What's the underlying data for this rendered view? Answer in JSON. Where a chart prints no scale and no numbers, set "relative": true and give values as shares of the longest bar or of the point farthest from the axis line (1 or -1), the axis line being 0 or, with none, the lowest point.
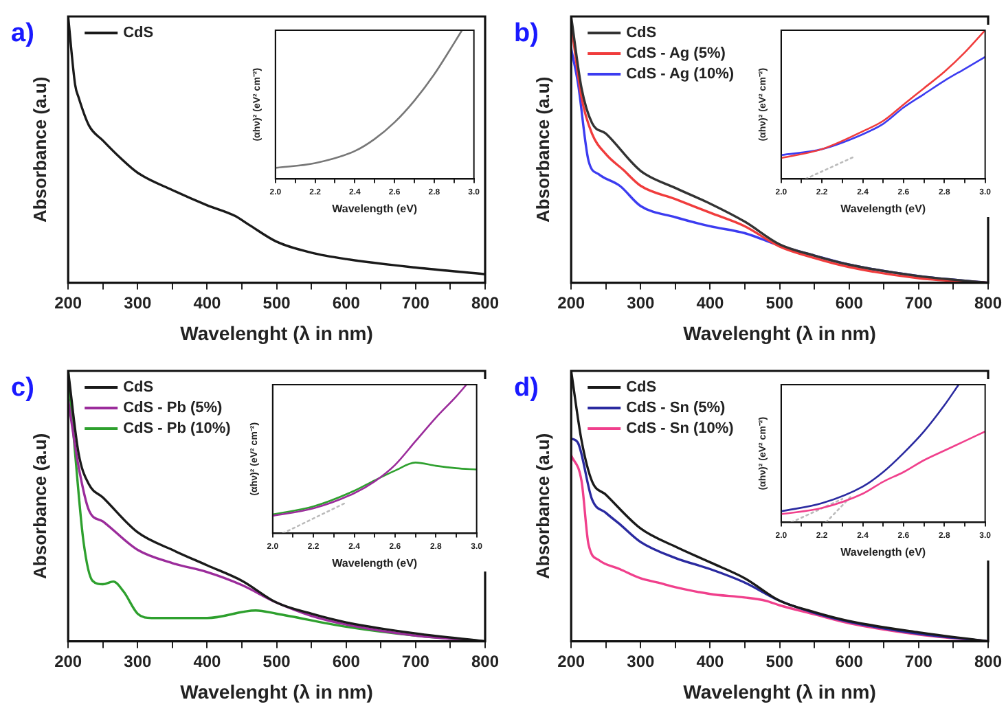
{
  "chart_data": [
    {
      "type": "line",
      "relative": true,
      "xlabel": "Wavelenght (λ in nm)",
      "ylabel": "Absorbance (a.u)",
      "annotations": [
        "a)"
      ],
      "legend": "top left",
      "marker": "none",
      "line_style": "solid",
      "xlim": [
        200,
        800
      ],
      "xticks": [
        200,
        {
          "value": 250,
          "label": null
        },
        300,
        {
          "value": 350,
          "label": null
        },
        400,
        {
          "value": 450,
          "label": null
        },
        500,
        {
          "value": 550,
          "label": null
        },
        600,
        {
          "value": 650,
          "label": null
        },
        700,
        {
          "value": 750,
          "label": null
        },
        800
      ],
      "series": [
        {
          "name": "CdS",
          "color": "#1a1a1a",
          "x": [
            200,
            210,
            215,
            230,
            250,
            275,
            300,
            350,
            400,
            440,
            460,
            500,
            550,
            600,
            700,
            800
          ],
          "values": [
            1.0,
            0.744,
            0.696,
            0.59,
            0.534,
            0.469,
            0.413,
            0.348,
            0.291,
            0.251,
            0.218,
            0.154,
            0.113,
            0.089,
            0.057,
            0.032
          ]
        }
      ]
    },
    {
      "type": "line",
      "relative": true,
      "xlabel": "Wavelength (eV)",
      "ylabel": "(αhν)² (eV² cm⁻²)",
      "marker": "none",
      "line_style": "solid",
      "xlim": [
        2.0,
        3.0
      ],
      "xticks": [
        {
          "value": 2.0,
          "label": "2.0"
        },
        {
          "value": 2.1,
          "label": null
        },
        {
          "value": 2.2,
          "label": "2.2"
        },
        {
          "value": 2.3,
          "label": null
        },
        {
          "value": 2.4,
          "label": "2.4"
        },
        {
          "value": 2.5,
          "label": null
        },
        {
          "value": 2.6,
          "label": "2.6"
        },
        {
          "value": 2.7,
          "label": null
        },
        {
          "value": 2.8,
          "label": "2.8"
        },
        {
          "value": 2.9,
          "label": null
        },
        {
          "value": 3.0,
          "label": "3.0"
        }
      ],
      "series": [
        {
          "color": "#777777",
          "x": [
            2.0,
            2.2,
            2.4,
            2.5,
            2.6,
            2.7,
            2.8,
            2.9,
            2.94
          ],
          "values": [
            0.074,
            0.106,
            0.187,
            0.268,
            0.38,
            0.526,
            0.703,
            0.913,
            1.0
          ]
        }
      ]
    },
    {
      "type": "line",
      "relative": true,
      "xlabel": "Wavelenght (λ in nm)",
      "ylabel": "Absorbance (a.u)",
      "annotations": [
        "b)"
      ],
      "legend": "top left",
      "marker": "none",
      "line_style": "solid",
      "xlim": [
        200,
        800
      ],
      "xticks": [
        200,
        {
          "value": 250,
          "label": null
        },
        300,
        {
          "value": 350,
          "label": null
        },
        400,
        {
          "value": 450,
          "label": null
        },
        500,
        {
          "value": 550,
          "label": null
        },
        600,
        {
          "value": 650,
          "label": null
        },
        700,
        {
          "value": 750,
          "label": null
        },
        800
      ],
      "series": [
        {
          "name": "CdS",
          "color": "#333333",
          "x": [
            200,
            215,
            230,
            250,
            300,
            350,
            400,
            450,
            500,
            550,
            600,
            700,
            800
          ],
          "values": [
            1.0,
            0.73,
            0.6,
            0.56,
            0.42,
            0.356,
            0.297,
            0.229,
            0.144,
            0.102,
            0.068,
            0.025,
            0
          ]
        },
        {
          "name": "CdS - Ag (5%)",
          "color": "#f03c3c",
          "x": [
            200,
            215,
            230,
            250,
            275,
            300,
            350,
            400,
            450,
            500,
            550,
            600,
            700,
            800
          ],
          "values": [
            0.975,
            0.695,
            0.56,
            0.483,
            0.424,
            0.364,
            0.314,
            0.263,
            0.212,
            0.136,
            0.093,
            0.059,
            0.017,
            0
          ]
        },
        {
          "name": "CdS - Ag (10%)",
          "color": "#3c3cf0",
          "x": [
            200,
            210,
            225,
            240,
            270,
            300,
            350,
            400,
            450,
            500,
            550,
            600,
            700,
            800
          ],
          "values": [
            0.88,
            0.746,
            0.458,
            0.407,
            0.364,
            0.288,
            0.246,
            0.212,
            0.186,
            0.139,
            0.102,
            0.068,
            0.025,
            0
          ]
        }
      ]
    },
    {
      "type": "line",
      "relative": true,
      "xlabel": "Wavelength (eV)",
      "ylabel": "(αhν)² (eV² cm⁻²)",
      "marker": "none",
      "line_style": "solid",
      "xlim": [
        2.0,
        3.0
      ],
      "xticks": [
        {
          "value": 2.0,
          "label": "2.0"
        },
        {
          "value": 2.1,
          "label": null
        },
        {
          "value": 2.2,
          "label": "2.2"
        },
        {
          "value": 2.3,
          "label": null
        },
        {
          "value": 2.4,
          "label": "2.4"
        },
        {
          "value": 2.5,
          "label": null
        },
        {
          "value": 2.6,
          "label": "2.6"
        },
        {
          "value": 2.7,
          "label": null
        },
        {
          "value": 2.8,
          "label": "2.8"
        },
        {
          "value": 2.9,
          "label": null
        },
        {
          "value": 3.0,
          "label": "3.0"
        }
      ],
      "series": [
        {
          "color": "#f03c3c",
          "x": [
            2.0,
            2.2,
            2.4,
            2.5,
            2.6,
            2.7,
            2.8,
            2.9,
            3.0
          ],
          "values": [
            0.14,
            0.2,
            0.32,
            0.39,
            0.5,
            0.61,
            0.72,
            0.85,
            1.0
          ]
        },
        {
          "color": "#3c3cf0",
          "x": [
            2.0,
            2.2,
            2.4,
            2.5,
            2.6,
            2.7,
            2.8,
            2.9,
            3.0
          ],
          "values": [
            0.16,
            0.2,
            0.3,
            0.37,
            0.48,
            0.57,
            0.66,
            0.74,
            0.82
          ]
        },
        {
          "color": "#bbbbbb",
          "line_style": "dotted",
          "x": [
            2.12,
            2.36
          ],
          "values": [
            0,
            0.15
          ]
        }
      ]
    },
    {
      "type": "line",
      "relative": true,
      "xlabel": "Wavelenght (λ in nm)",
      "ylabel": "Absorbance (a.u)",
      "annotations": [
        "c)"
      ],
      "legend": "top left",
      "marker": "none",
      "line_style": "solid",
      "xlim": [
        200,
        800
      ],
      "xticks": [
        200,
        {
          "value": 250,
          "label": null
        },
        300,
        {
          "value": 350,
          "label": null
        },
        400,
        {
          "value": 450,
          "label": null
        },
        500,
        {
          "value": 550,
          "label": null
        },
        600,
        {
          "value": 650,
          "label": null
        },
        700,
        {
          "value": 750,
          "label": null
        },
        800
      ],
      "series": [
        {
          "name": "CdS",
          "color": "#1a1a1a",
          "x": [
            200,
            215,
            230,
            250,
            300,
            350,
            400,
            450,
            500,
            550,
            600,
            700,
            800
          ],
          "values": [
            1.0,
            0.695,
            0.58,
            0.532,
            0.403,
            0.338,
            0.281,
            0.224,
            0.143,
            0.102,
            0.07,
            0.029,
            0
          ]
        },
        {
          "name": "CdS - Pb (5%)",
          "color": "#9b2c9b",
          "x": [
            200,
            215,
            230,
            250,
            300,
            350,
            400,
            450,
            500,
            550,
            600,
            700,
            800
          ],
          "values": [
            0.893,
            0.646,
            0.484,
            0.443,
            0.338,
            0.289,
            0.256,
            0.208,
            0.143,
            0.094,
            0.062,
            0.021,
            0
          ]
        },
        {
          "name": "CdS - Pb (10%)",
          "color": "#2ea02e",
          "x": [
            200,
            210,
            222,
            235,
            250,
            265,
            280,
            300,
            320,
            400,
            470,
            500,
            600,
            700,
            800
          ],
          "values": [
            1.0,
            0.695,
            0.37,
            0.224,
            0.211,
            0.221,
            0.183,
            0.102,
            0.086,
            0.086,
            0.114,
            0.102,
            0.054,
            0.021,
            0
          ]
        }
      ]
    },
    {
      "type": "line",
      "relative": true,
      "xlabel": "Wavelength (eV)",
      "ylabel": "(αhν)² (eV² cm⁻²)",
      "marker": "none",
      "line_style": "solid",
      "xlim": [
        2.0,
        3.0
      ],
      "xticks": [
        {
          "value": 2.0,
          "label": "2.0"
        },
        {
          "value": 2.1,
          "label": null
        },
        {
          "value": 2.2,
          "label": "2.2"
        },
        {
          "value": 2.3,
          "label": null
        },
        {
          "value": 2.4,
          "label": "2.4"
        },
        {
          "value": 2.5,
          "label": null
        },
        {
          "value": 2.6,
          "label": "2.6"
        },
        {
          "value": 2.7,
          "label": null
        },
        {
          "value": 2.8,
          "label": "2.8"
        },
        {
          "value": 2.9,
          "label": null
        },
        {
          "value": 3.0,
          "label": "3.0"
        }
      ],
      "series": [
        {
          "color": "#9b2c9b",
          "x": [
            2.0,
            2.2,
            2.4,
            2.5,
            2.6,
            2.7,
            2.8,
            2.9,
            2.95
          ],
          "values": [
            0.117,
            0.168,
            0.27,
            0.349,
            0.46,
            0.619,
            0.778,
            0.921,
            1.0
          ]
        },
        {
          "color": "#2ea02e",
          "x": [
            2.0,
            2.2,
            2.4,
            2.5,
            2.6,
            2.7,
            2.8,
            2.9,
            3.0
          ],
          "values": [
            0.127,
            0.181,
            0.286,
            0.356,
            0.422,
            0.476,
            0.454,
            0.438,
            0.429
          ]
        },
        {
          "color": "#bbbbbb",
          "line_style": "dotted",
          "x": [
            2.05,
            2.35
          ],
          "values": [
            0,
            0.2
          ]
        }
      ]
    },
    {
      "type": "line",
      "relative": true,
      "xlabel": "Wavelenght (λ in nm)",
      "ylabel": "Absorbance (a.u)",
      "annotations": [
        "d)"
      ],
      "legend": "top left",
      "marker": "none",
      "line_style": "solid",
      "xlim": [
        200,
        800
      ],
      "xticks": [
        200,
        {
          "value": 250,
          "label": null
        },
        300,
        {
          "value": 350,
          "label": null
        },
        400,
        {
          "value": 450,
          "label": null
        },
        500,
        {
          "value": 550,
          "label": null
        },
        600,
        {
          "value": 650,
          "label": null
        },
        700,
        {
          "value": 750,
          "label": null
        },
        800
      ],
      "series": [
        {
          "name": "CdS",
          "color": "#1a1a1a",
          "x": [
            200,
            215,
            230,
            250,
            300,
            350,
            400,
            450,
            500,
            550,
            600,
            700,
            800
          ],
          "values": [
            1.0,
            0.742,
            0.592,
            0.542,
            0.417,
            0.35,
            0.292,
            0.233,
            0.15,
            0.108,
            0.075,
            0.033,
            0
          ]
        },
        {
          "name": "CdS - Sn (5%)",
          "color": "#2a2aa0",
          "x": [
            200,
            210,
            230,
            250,
            270,
            300,
            350,
            400,
            450,
            500,
            550,
            600,
            700,
            800
          ],
          "values": [
            0.75,
            0.733,
            0.525,
            0.475,
            0.433,
            0.367,
            0.308,
            0.267,
            0.217,
            0.15,
            0.105,
            0.072,
            0.028,
            0
          ]
        },
        {
          "name": "CdS - Sn (10%)",
          "color": "#f0408c",
          "x": [
            200,
            215,
            225,
            240,
            270,
            300,
            325,
            350,
            400,
            450,
            480,
            500,
            550,
            600,
            700,
            800
          ],
          "values": [
            0.688,
            0.592,
            0.358,
            0.3,
            0.267,
            0.233,
            0.217,
            0.2,
            0.175,
            0.162,
            0.15,
            0.133,
            0.1,
            0.067,
            0.025,
            0
          ]
        }
      ]
    },
    {
      "type": "line",
      "relative": true,
      "xlabel": "Wavelength (eV)",
      "ylabel": "(αhν)² (eV² cm⁻²)",
      "marker": "none",
      "line_style": "solid",
      "xlim": [
        2.0,
        3.0
      ],
      "xticks": [
        {
          "value": 2.0,
          "label": "2.0"
        },
        {
          "value": 2.1,
          "label": null
        },
        {
          "value": 2.2,
          "label": "2.2"
        },
        {
          "value": 2.3,
          "label": null
        },
        {
          "value": 2.4,
          "label": "2.4"
        },
        {
          "value": 2.5,
          "label": null
        },
        {
          "value": 2.6,
          "label": "2.6"
        },
        {
          "value": 2.7,
          "label": null
        },
        {
          "value": 2.8,
          "label": "2.8"
        },
        {
          "value": 2.9,
          "label": null
        },
        {
          "value": 3.0,
          "label": "3.0"
        }
      ],
      "series": [
        {
          "color": "#2a2aa0",
          "x": [
            2.0,
            2.2,
            2.4,
            2.5,
            2.6,
            2.7,
            2.8,
            2.87
          ],
          "values": [
            0.08,
            0.139,
            0.26,
            0.365,
            0.503,
            0.66,
            0.85,
            1.0
          ]
        },
        {
          "color": "#f0408c",
          "x": [
            2.0,
            2.2,
            2.4,
            2.5,
            2.6,
            2.7,
            2.8,
            2.9,
            3.0
          ],
          "values": [
            0.059,
            0.104,
            0.208,
            0.295,
            0.365,
            0.451,
            0.521,
            0.59,
            0.66
          ]
        },
        {
          "color": "#bbbbbb",
          "line_style": "dotted",
          "x": [
            2.05,
            2.3
          ],
          "values": [
            0,
            0.17
          ]
        },
        {
          "color": "#bbbbbb",
          "line_style": "dotted",
          "x": [
            2.22,
            2.35
          ],
          "values": [
            0,
            0.2
          ]
        }
      ]
    }
  ]
}
